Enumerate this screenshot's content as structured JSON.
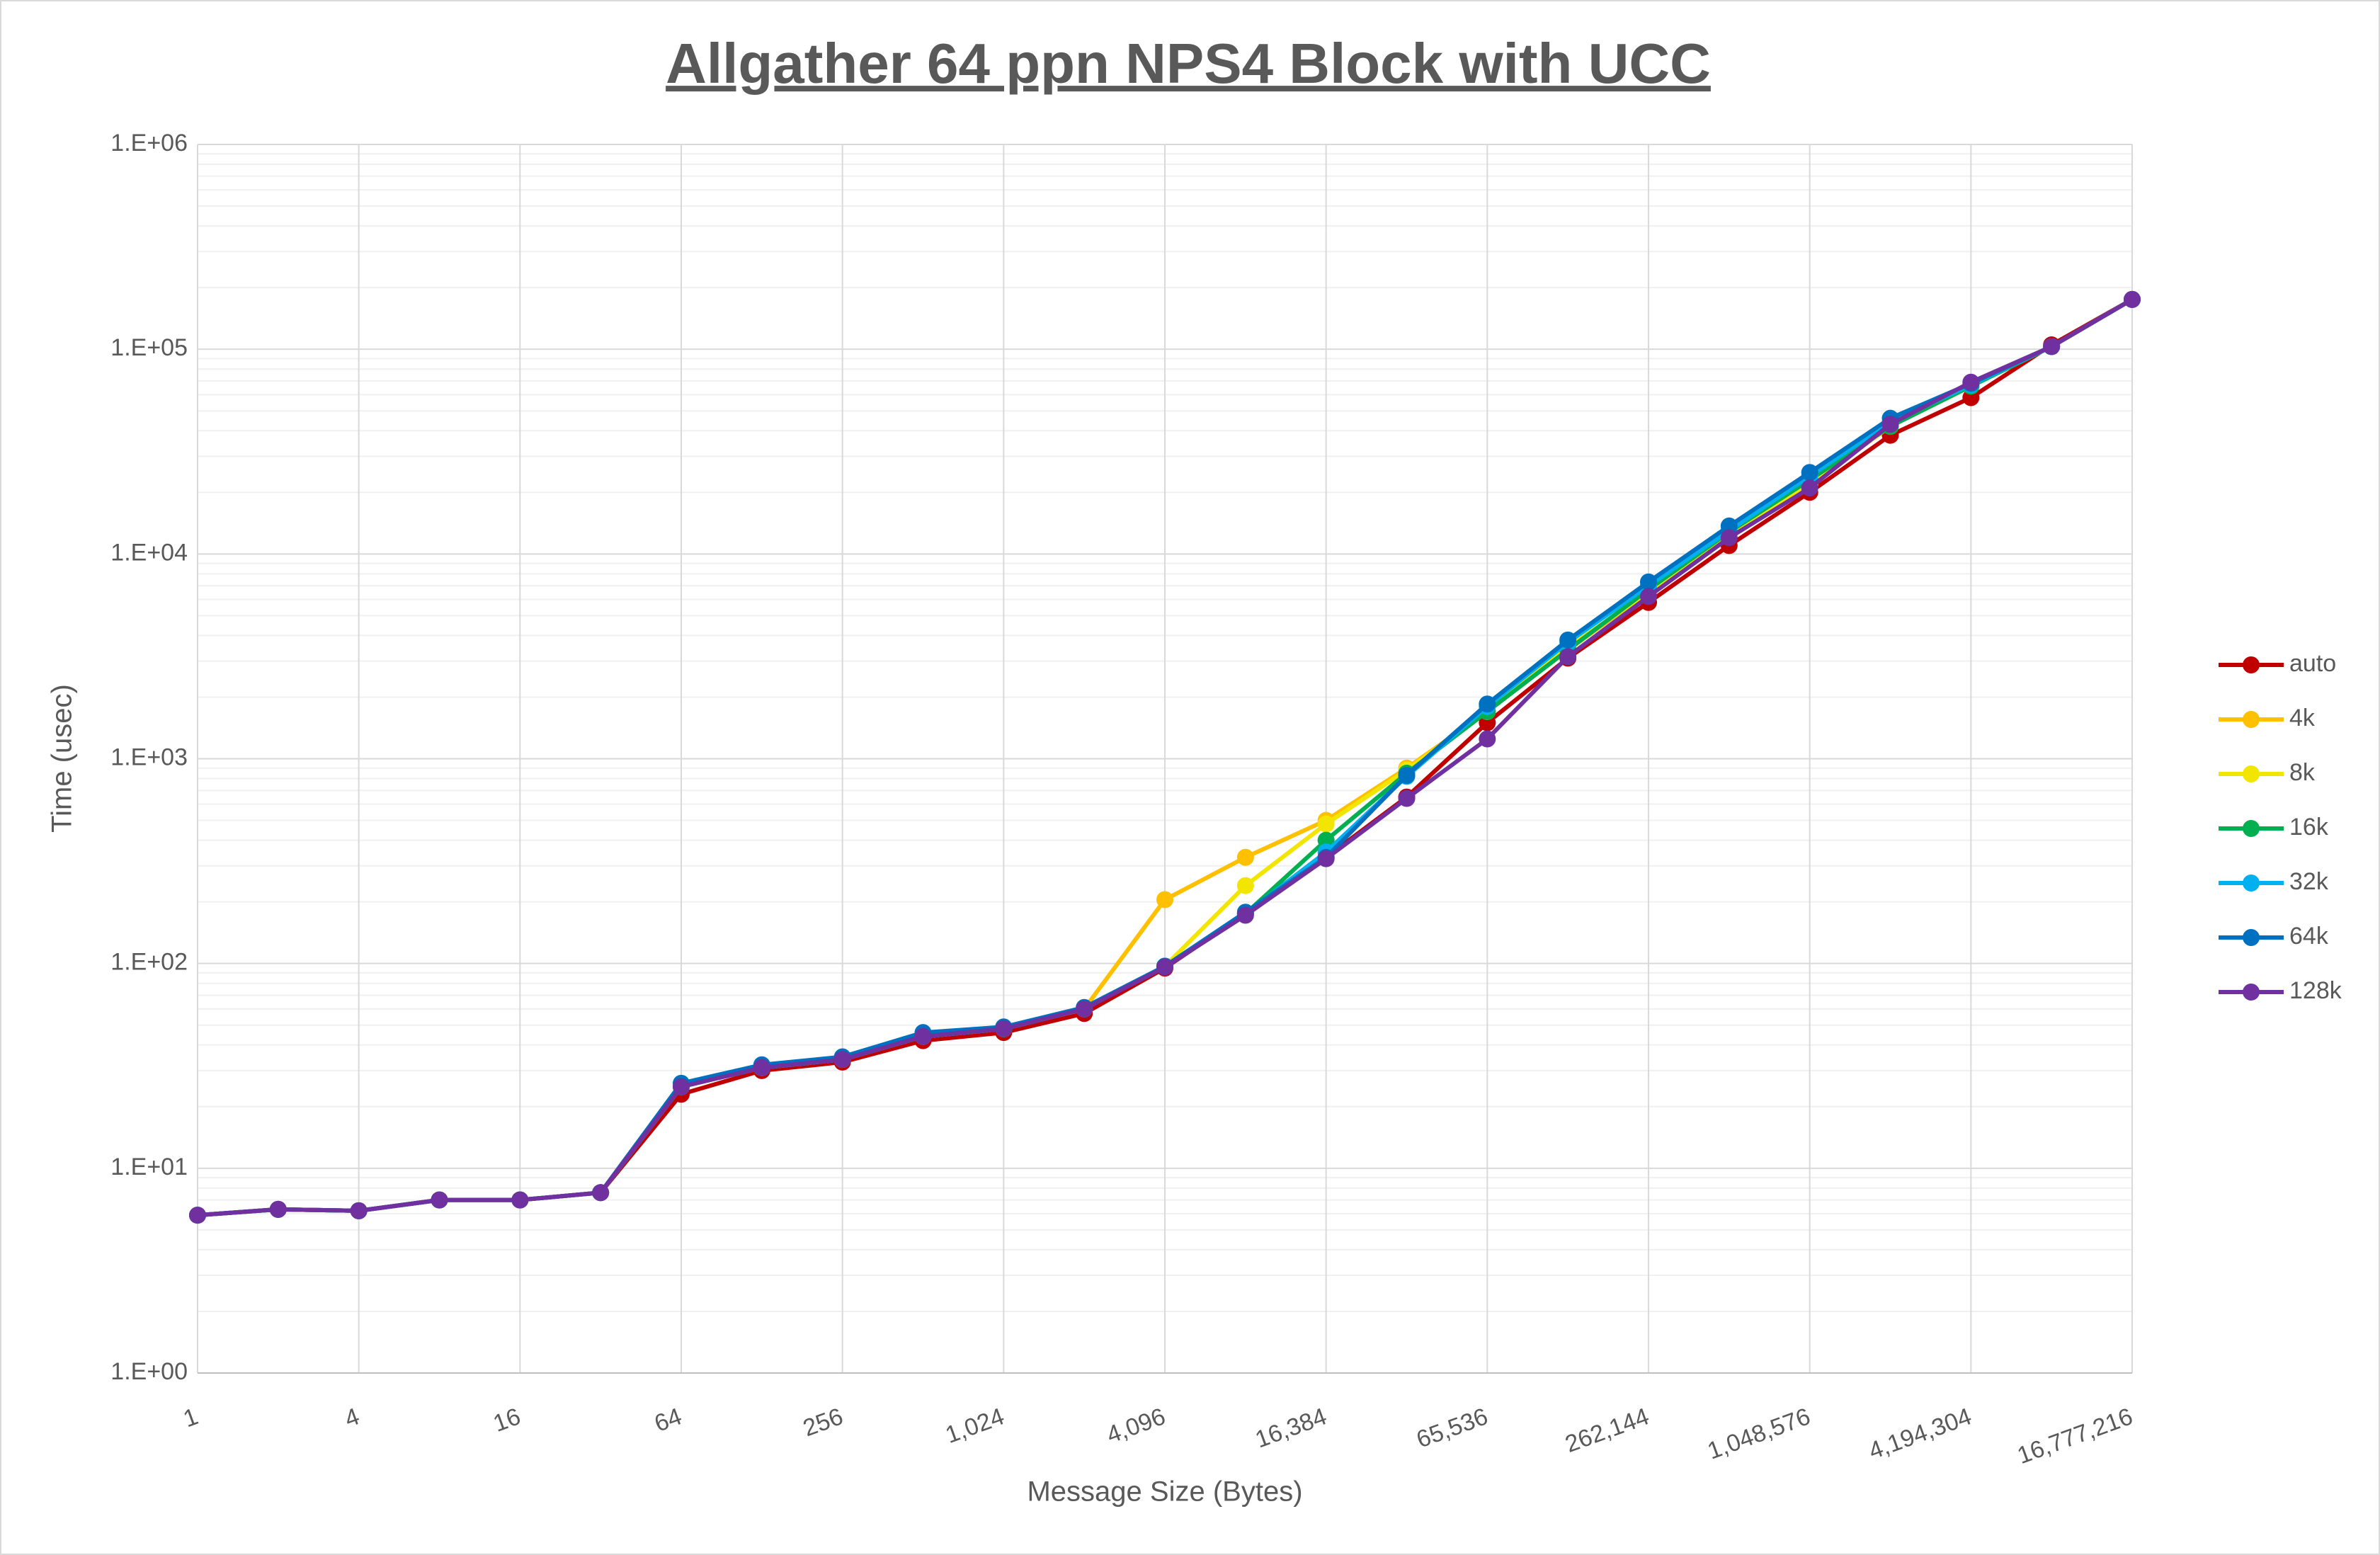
{
  "chart_data": {
    "type": "line",
    "title": "Allgather 64 ppn NPS4 Block with UCC",
    "x_label": "Message Size (Bytes)",
    "y_label": "Time (usec)",
    "x": [
      1,
      2,
      4,
      8,
      16,
      32,
      64,
      128,
      256,
      512,
      1024,
      2048,
      4096,
      8192,
      16384,
      32768,
      65536,
      131072,
      262144,
      524288,
      1048576,
      2097152,
      4194304,
      8388608,
      16777216
    ],
    "xscale": "log",
    "yscale": "log",
    "grid": true,
    "minor_grid": true,
    "legend": "right",
    "xlim": [
      1,
      16777216
    ],
    "xticks": [
      1,
      4,
      16,
      64,
      256,
      {
        "value": 1024,
        "label": "1,024"
      },
      {
        "value": 4096,
        "label": "4,096"
      },
      {
        "value": 16384,
        "label": "16,384"
      },
      {
        "value": 65536,
        "label": "65,536"
      },
      {
        "value": 262144,
        "label": "262,144"
      },
      {
        "value": 1048576,
        "label": "1,048,576"
      },
      {
        "value": 4194304,
        "label": "4,194,304"
      },
      {
        "value": 16777216,
        "label": "16,777,216"
      }
    ],
    "ylim": [
      1,
      1000000
    ],
    "yticks": [
      {
        "value": 1,
        "label": "1.E+00"
      },
      {
        "value": 10,
        "label": "1.E+01"
      },
      {
        "value": 100,
        "label": "1.E+02"
      },
      {
        "value": 1000,
        "label": "1.E+03"
      },
      {
        "value": 10000,
        "label": "1.E+04"
      },
      {
        "value": 100000,
        "label": "1.E+05"
      },
      {
        "value": 1000000,
        "label": "1.E+06"
      }
    ],
    "series": [
      {
        "name": "auto",
        "color": "#c00000",
        "values": [
          5.9,
          6.3,
          6.2,
          7.0,
          7.0,
          7.6,
          23,
          30,
          33,
          42,
          46,
          57,
          95,
          175,
          330,
          650,
          1500,
          3100,
          5800,
          11000,
          20000,
          38000,
          58000,
          105000,
          175000
        ]
      },
      {
        "name": "4k",
        "color": "#ffc000",
        "values": [
          5.9,
          6.3,
          6.2,
          7.0,
          7.0,
          7.6,
          25,
          31,
          34,
          44,
          48,
          60,
          205,
          330,
          500,
          900,
          1700,
          3400,
          6500,
          12500,
          22000,
          42000,
          66000,
          103000,
          175000
        ]
      },
      {
        "name": "8k",
        "color": "#f2e600",
        "values": [
          5.9,
          6.3,
          6.2,
          7.0,
          7.0,
          7.6,
          25,
          31,
          34,
          44,
          48,
          60,
          97,
          240,
          480,
          880,
          1700,
          3500,
          6500,
          12500,
          22000,
          43000,
          67000,
          103000,
          175000
        ]
      },
      {
        "name": "16k",
        "color": "#00b050",
        "values": [
          5.9,
          6.3,
          6.2,
          7.0,
          7.0,
          7.6,
          25,
          31,
          34,
          44,
          48,
          60,
          97,
          175,
          400,
          850,
          1700,
          3400,
          6700,
          12800,
          23000,
          42000,
          66000,
          103000,
          175000
        ]
      },
      {
        "name": "32k",
        "color": "#00b0f0",
        "values": [
          5.9,
          6.3,
          6.2,
          7.0,
          7.0,
          7.6,
          25,
          31,
          34,
          44,
          48,
          60,
          97,
          175,
          350,
          820,
          1800,
          3700,
          7000,
          13000,
          24000,
          44000,
          67000,
          103000,
          175000
        ]
      },
      {
        "name": "64k",
        "color": "#0070c0",
        "values": [
          5.9,
          6.3,
          6.2,
          7.0,
          7.0,
          7.6,
          26,
          32,
          35,
          46,
          49,
          61,
          97,
          178,
          330,
          830,
          1850,
          3800,
          7300,
          13700,
          25000,
          46000,
          68000,
          103000,
          175000
        ]
      },
      {
        "name": "128k",
        "color": "#7030a0",
        "values": [
          5.9,
          6.3,
          6.2,
          7.0,
          7.0,
          7.6,
          25,
          31,
          34,
          44,
          48,
          60,
          96,
          172,
          325,
          640,
          1250,
          3150,
          6200,
          12000,
          21000,
          43000,
          69000,
          103000,
          175000
        ]
      }
    ]
  }
}
